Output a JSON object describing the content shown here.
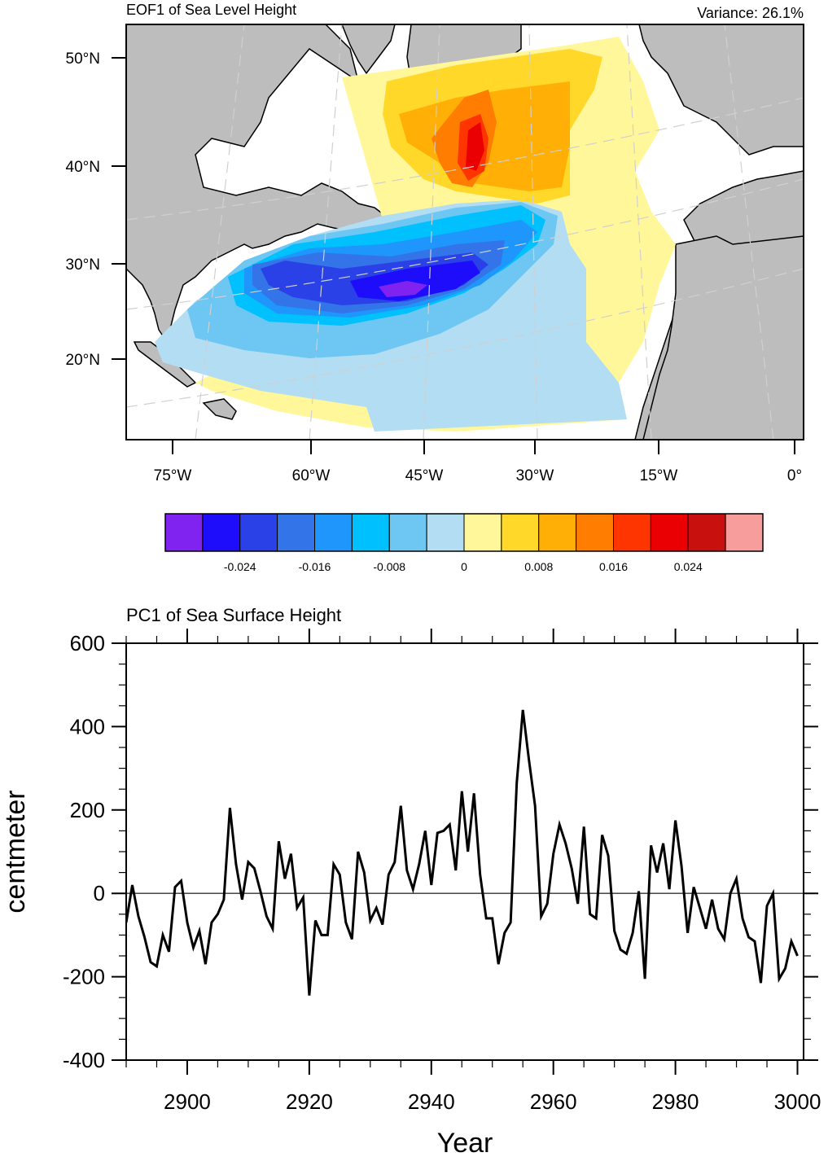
{
  "chart_data": [
    {
      "type": "heatmap",
      "subtype": "filled-contour-map",
      "title": "EOF1 of Sea Level Height",
      "right_title": "Variance: 26.1%",
      "region": "North Atlantic",
      "lat_ticks": [
        "20°N",
        "30°N",
        "40°N",
        "50°N"
      ],
      "lat_values": [
        20,
        30,
        40,
        50
      ],
      "lon_ticks": [
        "75°W",
        "60°W",
        "45°W",
        "30°W",
        "15°W",
        "0°"
      ],
      "lon_values": [
        -75,
        -60,
        -45,
        -30,
        -15,
        0
      ],
      "land_color": "#bdbdbd",
      "missing_color": "#ffffff",
      "grid": true,
      "features": [
        {
          "name": "negative-core",
          "description": "Subtropical gyre minimum (< -0.028) near 28°N, 45°W",
          "center_lon": -45,
          "center_lat": 28,
          "value": -0.03
        },
        {
          "name": "positive-core",
          "description": "Subpolar maximum (0.024-0.028) near 42°N, 37°W",
          "center_lon": -37,
          "center_lat": 42,
          "value": 0.026
        }
      ],
      "colorbar": {
        "orientation": "horizontal",
        "levels": [
          -0.028,
          -0.024,
          -0.02,
          -0.016,
          -0.012,
          -0.008,
          -0.004,
          0,
          0.004,
          0.008,
          0.012,
          0.016,
          0.02,
          0.024,
          0.028
        ],
        "labels": [
          "-0.024",
          "-0.016",
          "-0.008",
          "0",
          "0.008",
          "0.016",
          "0.024"
        ],
        "label_values": [
          -0.024,
          -0.016,
          -0.008,
          0,
          0.008,
          0.016,
          0.024
        ],
        "colors": [
          "#8022f0",
          "#1e0dfb",
          "#2a41e8",
          "#3474e9",
          "#1e96fb",
          "#00c0fd",
          "#6ec6f2",
          "#b2ddf3",
          "#fff79a",
          "#ffd829",
          "#ffaf06",
          "#ff7d01",
          "#ff3501",
          "#ea0002",
          "#c8110f",
          "#f79e9d"
        ]
      }
    },
    {
      "type": "line",
      "title": "PC1 of Sea Surface Height",
      "xlabel": "Year",
      "ylabel": "centmeter",
      "xlim": [
        2890,
        3001
      ],
      "ylim": [
        -400,
        600
      ],
      "x_ticks": [
        2900,
        2920,
        2940,
        2960,
        2980,
        3000
      ],
      "x_tick_labels": [
        "2900",
        "2920",
        "2940",
        "2960",
        "2980",
        "3000"
      ],
      "y_ticks": [
        -400,
        -200,
        0,
        200,
        400,
        600
      ],
      "y_tick_labels": [
        "-400",
        "-200",
        "0",
        "200",
        "400",
        "600"
      ],
      "reference_line": 0,
      "grid": false,
      "series": [
        {
          "name": "PC1",
          "color": "#000000",
          "x_start": 2890,
          "x_step": 1,
          "values": [
            -70,
            20,
            -55,
            -105,
            -165,
            -175,
            -100,
            -140,
            15,
            30,
            -70,
            -130,
            -90,
            -170,
            -70,
            -50,
            -15,
            205,
            70,
            -15,
            75,
            60,
            5,
            -55,
            -85,
            125,
            35,
            95,
            -35,
            -10,
            -245,
            -65,
            -100,
            -100,
            70,
            45,
            -70,
            -110,
            100,
            50,
            -65,
            -35,
            -75,
            45,
            75,
            210,
            55,
            10,
            70,
            150,
            20,
            145,
            150,
            165,
            55,
            245,
            100,
            240,
            45,
            -60,
            -60,
            -170,
            -95,
            -70,
            265,
            440,
            320,
            210,
            -55,
            -25,
            95,
            165,
            120,
            60,
            -25,
            160,
            -50,
            -60,
            140,
            90,
            -90,
            -135,
            -145,
            -95,
            5,
            -205,
            115,
            50,
            120,
            10,
            175,
            65,
            -95,
            15,
            -35,
            -85,
            -15,
            -85,
            -110,
            0,
            35,
            -60,
            -105,
            -115,
            -215,
            -30,
            0,
            -205,
            -180,
            -115,
            -150
          ]
        }
      ]
    }
  ]
}
